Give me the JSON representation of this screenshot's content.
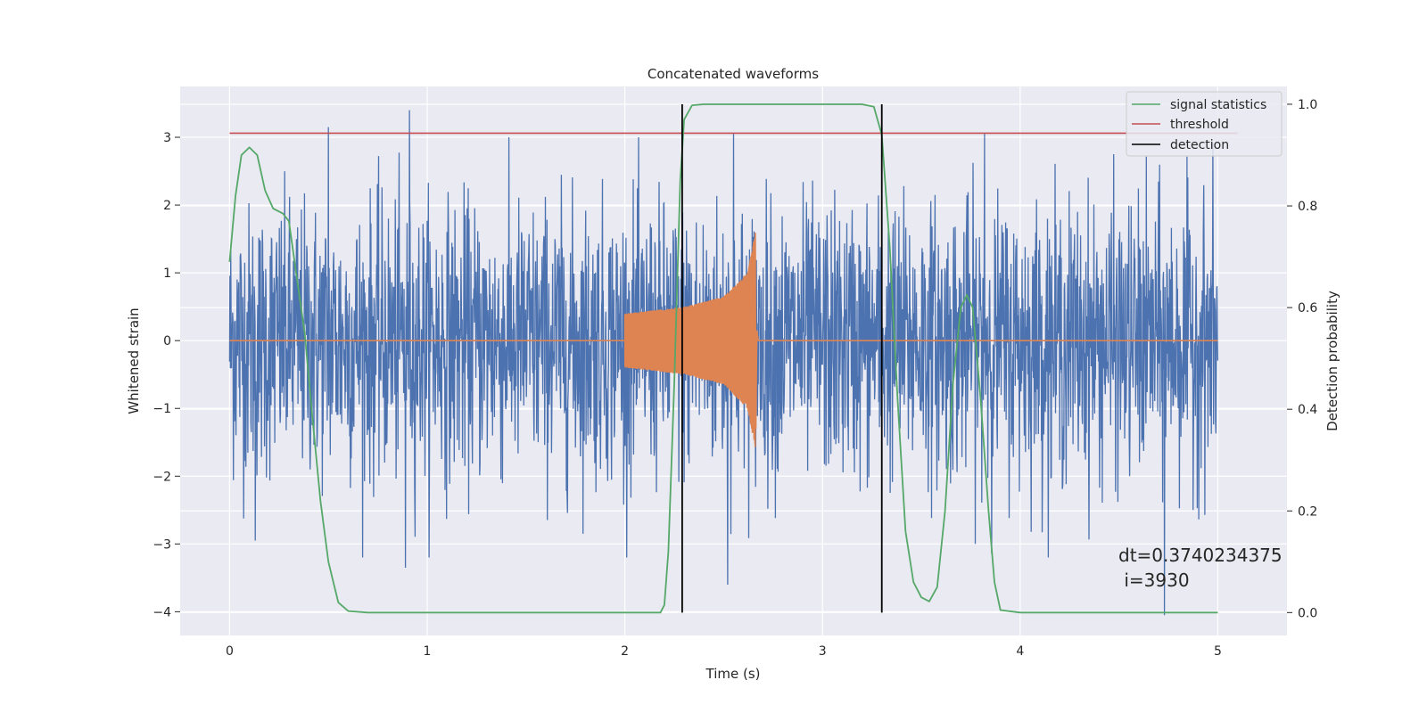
{
  "chart_data": {
    "type": "line",
    "title": "Concatenated waveforms",
    "xlabel": "Time (s)",
    "ylabel_left": "Whitened strain",
    "ylabel_right": "Detection probability",
    "xlim": [
      -0.25,
      5.35
    ],
    "ylim_left": [
      -4.35,
      3.75
    ],
    "ylim_right": [
      -0.045,
      1.035
    ],
    "x_ticks": [
      0,
      1,
      2,
      3,
      4,
      5
    ],
    "y_ticks_left": [
      3,
      2,
      1,
      0,
      -1,
      -2,
      -3,
      -4
    ],
    "y_ticks_right": [
      1.0,
      0.8,
      0.6,
      0.4,
      0.2,
      0.0
    ],
    "grid": true,
    "legend_position": "top-right",
    "series": [
      {
        "name": "",
        "axis": "left",
        "kind": "noise",
        "color": "#4c72b0",
        "x_range": [
          0,
          5
        ],
        "typical_amplitude": 1.0,
        "peaks": [
          {
            "x": 0.91,
            "y": 3.4
          },
          {
            "x": 0.5,
            "y": 3.15
          },
          {
            "x": 2.55,
            "y": 3.05
          },
          {
            "x": 3.82,
            "y": 3.05
          },
          {
            "x": 4.73,
            "y": -4.05
          },
          {
            "x": 0.89,
            "y": -3.35
          },
          {
            "x": 2.52,
            "y": -3.6
          },
          {
            "x": 0.13,
            "y": -2.95
          }
        ]
      },
      {
        "name": "",
        "axis": "left",
        "kind": "chirp",
        "color": "#dd8452",
        "x_range": [
          0,
          5
        ],
        "chirp_start": 2.0,
        "chirp_end": 2.66,
        "envelope": [
          {
            "x": 2.0,
            "y": 0.4
          },
          {
            "x": 2.3,
            "y": 0.5
          },
          {
            "x": 2.5,
            "y": 0.65
          },
          {
            "x": 2.62,
            "y": 1.0
          },
          {
            "x": 2.66,
            "y": 1.6
          }
        ]
      },
      {
        "name": "signal statistics",
        "axis": "right",
        "color": "#55a868",
        "points": [
          [
            0.0,
            0.69
          ],
          [
            0.03,
            0.82
          ],
          [
            0.06,
            0.9
          ],
          [
            0.1,
            0.915
          ],
          [
            0.14,
            0.9
          ],
          [
            0.18,
            0.83
          ],
          [
            0.22,
            0.795
          ],
          [
            0.27,
            0.785
          ],
          [
            0.3,
            0.77
          ],
          [
            0.34,
            0.66
          ],
          [
            0.38,
            0.55
          ],
          [
            0.42,
            0.38
          ],
          [
            0.46,
            0.22
          ],
          [
            0.5,
            0.1
          ],
          [
            0.55,
            0.02
          ],
          [
            0.6,
            0.003
          ],
          [
            0.7,
            0.0
          ],
          [
            1.0,
            0.0
          ],
          [
            2.0,
            0.0
          ],
          [
            2.18,
            0.0
          ],
          [
            2.2,
            0.015
          ],
          [
            2.22,
            0.12
          ],
          [
            2.25,
            0.45
          ],
          [
            2.28,
            0.85
          ],
          [
            2.3,
            0.97
          ],
          [
            2.34,
            0.998
          ],
          [
            2.4,
            1.0
          ],
          [
            3.2,
            1.0
          ],
          [
            3.26,
            0.995
          ],
          [
            3.3,
            0.94
          ],
          [
            3.34,
            0.72
          ],
          [
            3.38,
            0.42
          ],
          [
            3.42,
            0.16
          ],
          [
            3.46,
            0.06
          ],
          [
            3.5,
            0.03
          ],
          [
            3.54,
            0.022
          ],
          [
            3.58,
            0.05
          ],
          [
            3.62,
            0.2
          ],
          [
            3.66,
            0.45
          ],
          [
            3.7,
            0.6
          ],
          [
            3.73,
            0.625
          ],
          [
            3.76,
            0.6
          ],
          [
            3.8,
            0.42
          ],
          [
            3.84,
            0.2
          ],
          [
            3.87,
            0.06
          ],
          [
            3.9,
            0.005
          ],
          [
            4.0,
            0.0
          ],
          [
            5.0,
            0.0
          ]
        ]
      },
      {
        "name": "threshold",
        "axis": "left",
        "color": "#c44e52",
        "points": [
          [
            0.0,
            3.06
          ],
          [
            5.1,
            3.06
          ]
        ]
      },
      {
        "name": "detection",
        "axis": "right",
        "color": "#000000",
        "vlines": [
          2.29,
          3.3
        ],
        "vline_range": [
          0.0,
          1.0
        ]
      }
    ],
    "annotations": [
      "dt=0.3740234375",
      " i=3930"
    ]
  }
}
